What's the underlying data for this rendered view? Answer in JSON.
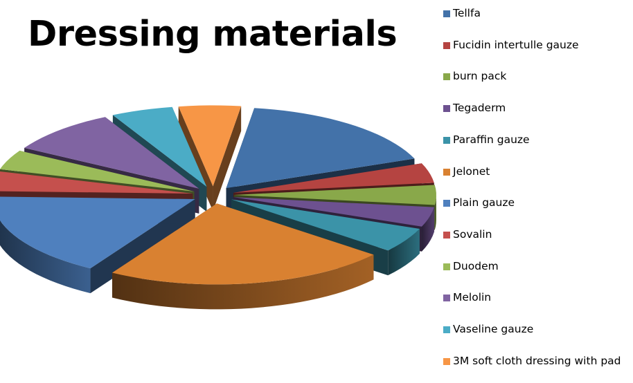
{
  "chart_data": {
    "type": "pie",
    "style": "3d-exploded",
    "title": "Dressing materials",
    "legend_position": "right",
    "slices": [
      {
        "label": "Tellfa",
        "value": 17,
        "color": "#4372A9"
      },
      {
        "label": "Fucidin intertulle gauze",
        "value": 4,
        "color": "#B54441"
      },
      {
        "label": "burn pack",
        "value": 4,
        "color": "#89A84A"
      },
      {
        "label": "Tegaderm",
        "value": 4,
        "color": "#6D5190"
      },
      {
        "label": "Paraffin gauze",
        "value": 5,
        "color": "#3B93A8"
      },
      {
        "label": "Jelonet",
        "value": 23,
        "color": "#D98131"
      },
      {
        "label": "Plain gauze",
        "value": 17,
        "color": "#4F80BE"
      },
      {
        "label": "Sovalin",
        "value": 4,
        "color": "#C5504D"
      },
      {
        "label": "Duodem",
        "value": 4,
        "color": "#9BBB59"
      },
      {
        "label": "Melolin",
        "value": 9,
        "color": "#8064A2"
      },
      {
        "label": "Vaseline gauze",
        "value": 5,
        "color": "#4BACC6"
      },
      {
        "label": "3M soft cloth dressing with pad",
        "value": 5,
        "color": "#F79646"
      }
    ]
  }
}
